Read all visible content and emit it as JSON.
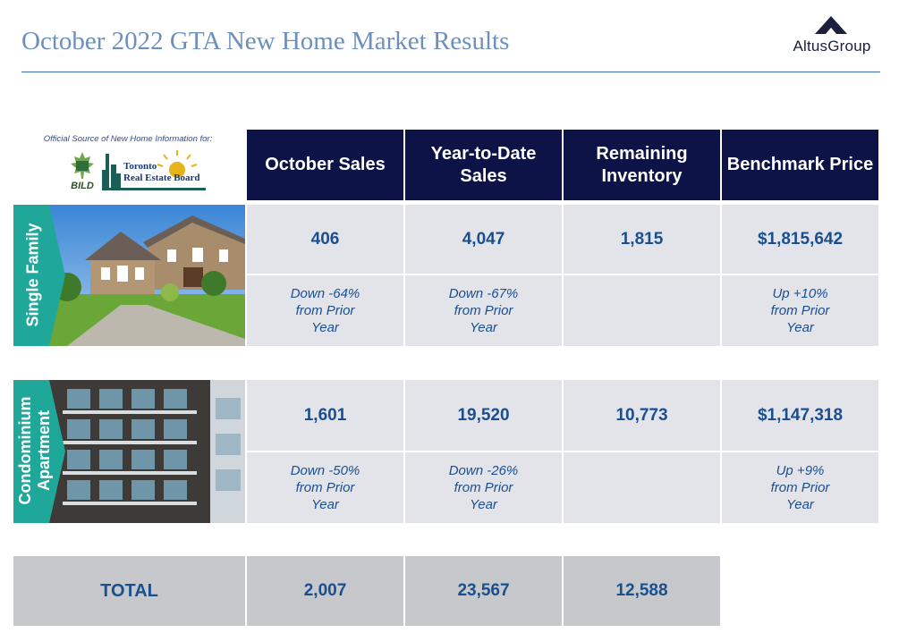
{
  "title": "October 2022 GTA New Home Market Results",
  "logo": {
    "text": "AltusGroup",
    "mark_color": "#1a1f3d"
  },
  "source": {
    "text": "Official Source of New Home Information for:",
    "bild_text": "BILD",
    "treb_line1": "Toronto",
    "treb_line2": "Real Estate Board"
  },
  "columns": [
    "October Sales",
    "Year-to-Date Sales",
    "Remaining Inventory",
    "Benchmark Price"
  ],
  "single_family": {
    "label": "Single Family",
    "values": [
      "406",
      "4,047",
      "1,815",
      "$1,815,642"
    ],
    "notes": [
      "Down -64%  from Prior Year",
      "Down -67%  from Prior Year",
      "",
      "Up +10% from Prior Year"
    ]
  },
  "condo": {
    "label_line1": "Condominium",
    "label_line2": "Apartment",
    "values": [
      "1,601",
      "19,520",
      "10,773",
      "$1,147,318"
    ],
    "notes": [
      "Down -50%  from Prior Year",
      "Down -26%  from Prior Year",
      "",
      "Up +9% from Prior Year"
    ]
  },
  "total": {
    "label": "TOTAL",
    "values": [
      "2,007",
      "23,567",
      "12,588"
    ]
  },
  "colors": {
    "header_bg": "#0d1346",
    "value_text": "#1a4f8f",
    "cell_bg": "#e3e4ea",
    "total_bg": "#c7c8cc",
    "accent_teal": "#1fa89a",
    "title": "#6d8fbe"
  }
}
